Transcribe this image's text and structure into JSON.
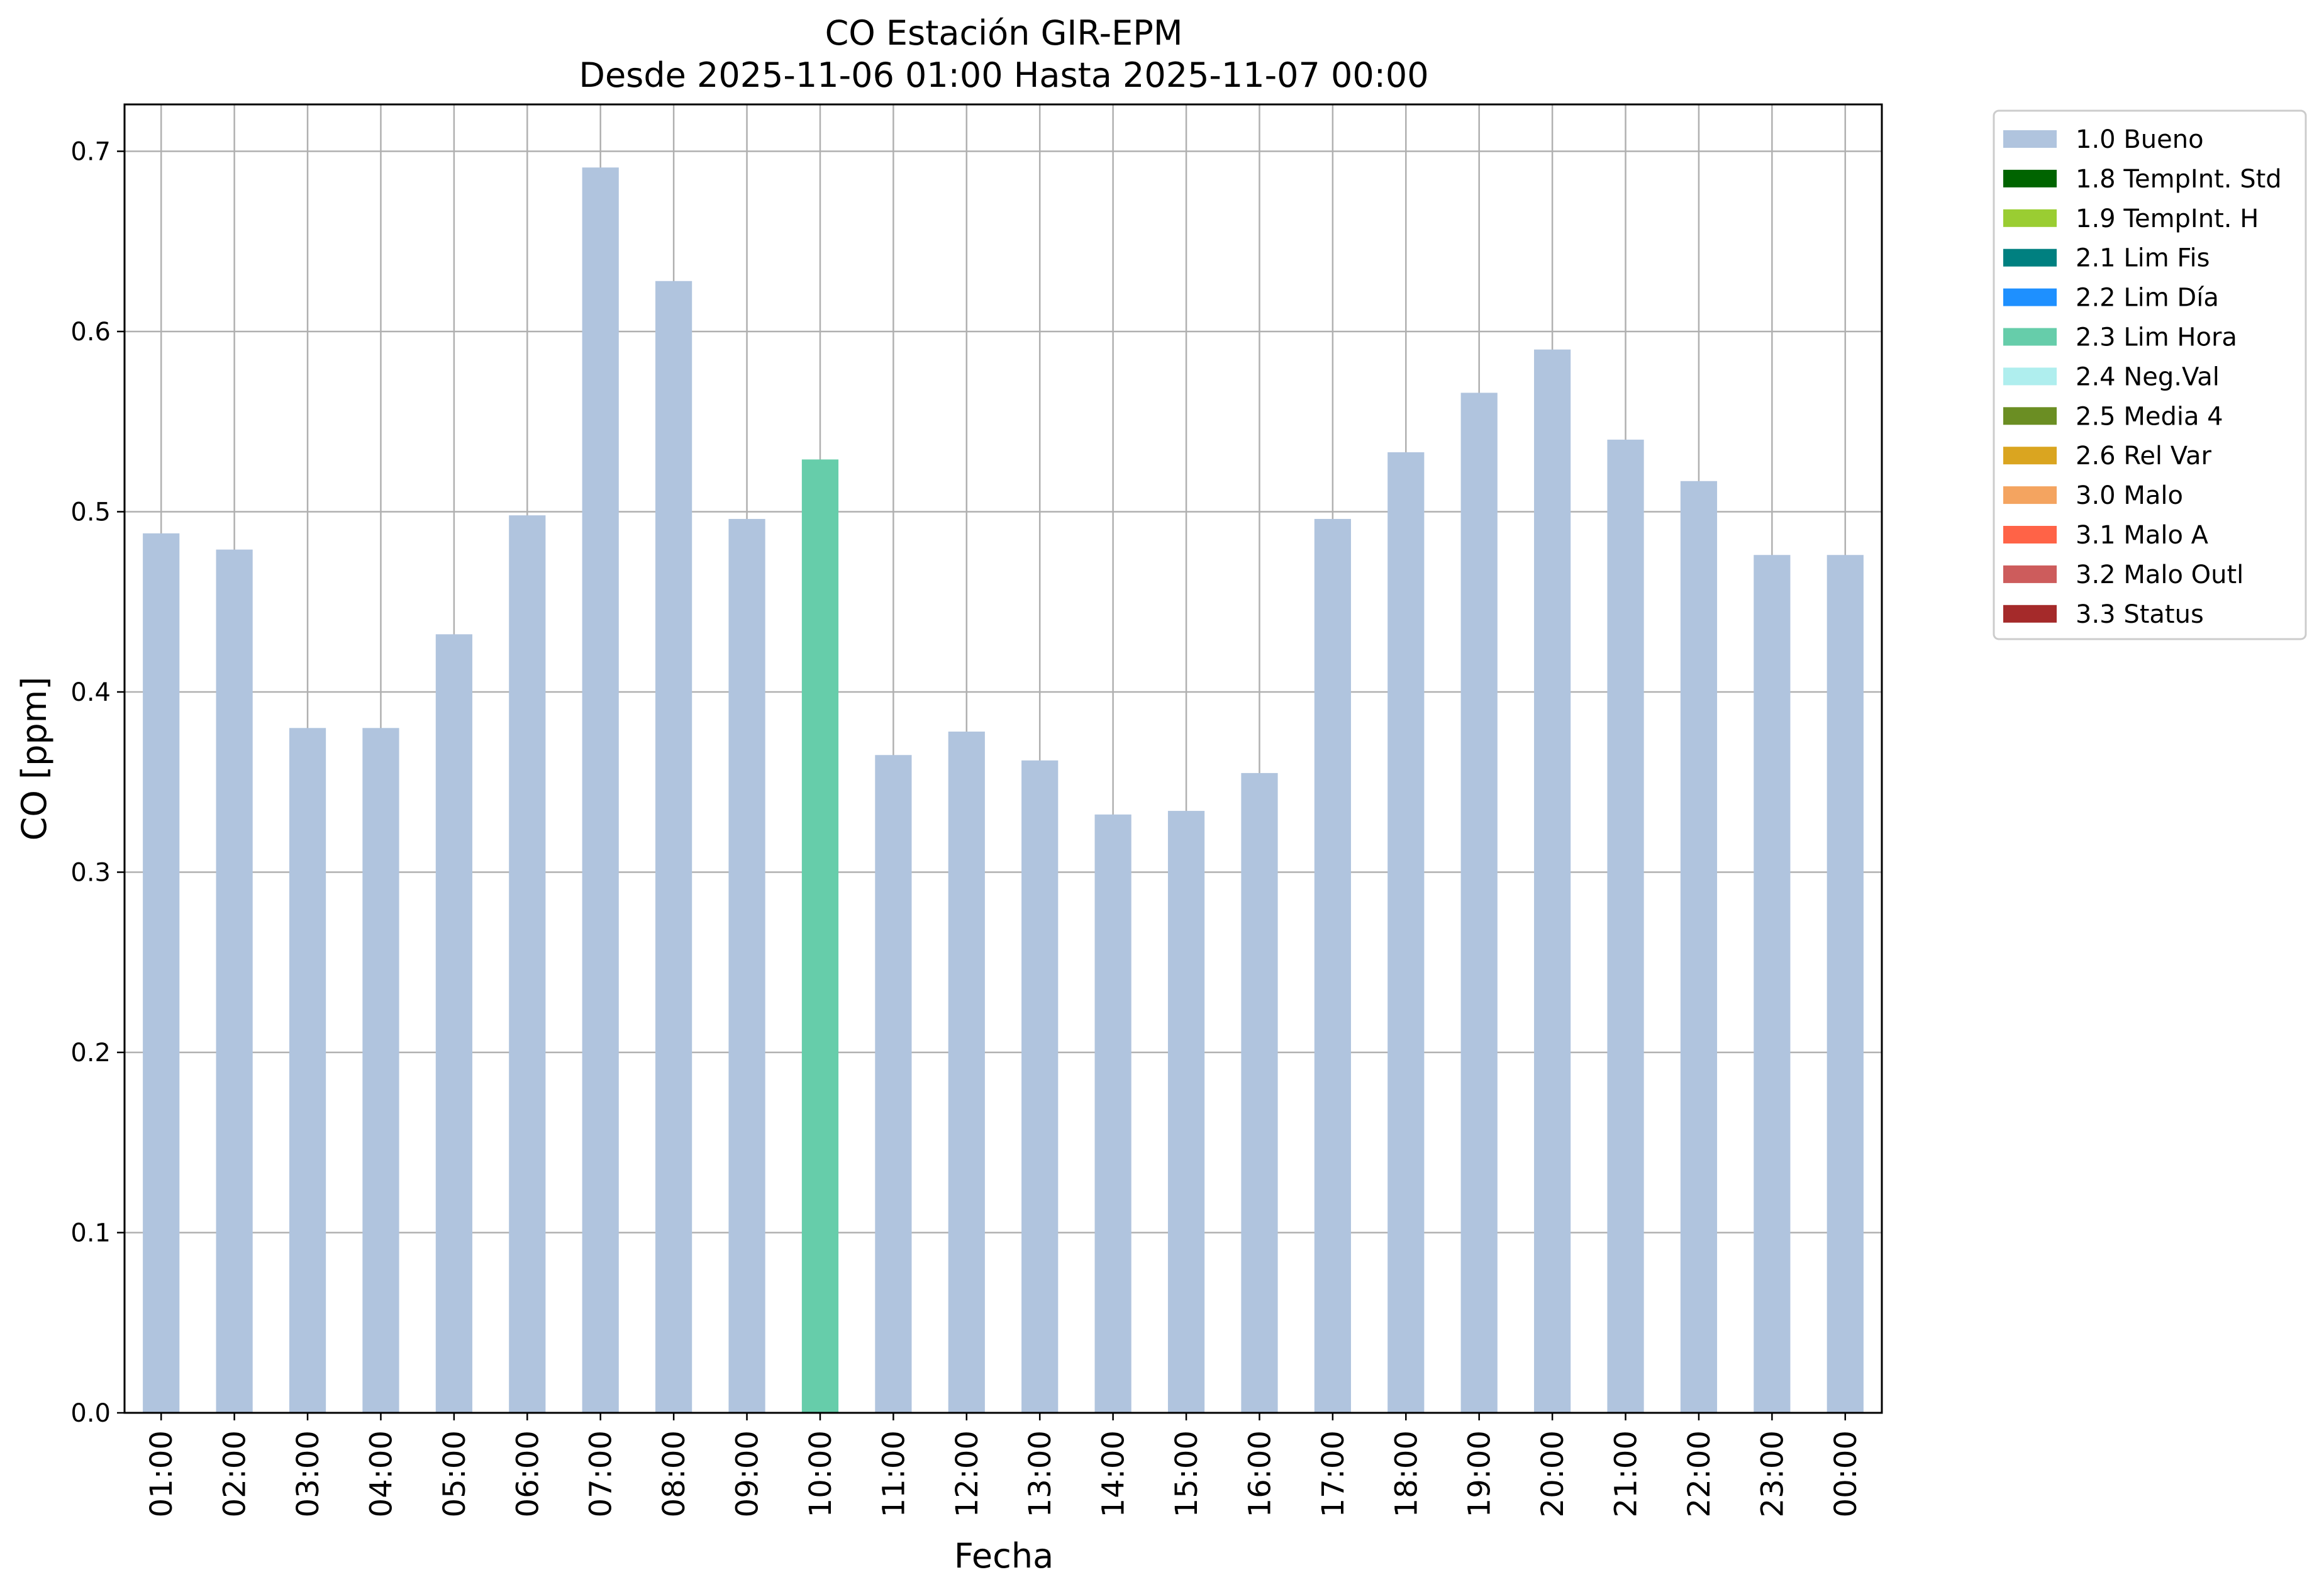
{
  "chart_data": {
    "type": "bar",
    "title": "CO Estación GIR-EPM",
    "subtitle": "Desde 2025-11-06 01:00 Hasta 2025-11-07 00:00",
    "xlabel": "Fecha",
    "ylabel": "CO [ppm]",
    "ylim": [
      0,
      0.726
    ],
    "yticks": [
      "0.0",
      "0.1",
      "0.2",
      "0.3",
      "0.4",
      "0.5",
      "0.6",
      "0.7"
    ],
    "grid": true,
    "legend_position": "outside-right-top",
    "categories": [
      "01:00",
      "02:00",
      "03:00",
      "04:00",
      "05:00",
      "06:00",
      "07:00",
      "08:00",
      "09:00",
      "10:00",
      "11:00",
      "12:00",
      "13:00",
      "14:00",
      "15:00",
      "16:00",
      "17:00",
      "18:00",
      "19:00",
      "20:00",
      "21:00",
      "22:00",
      "23:00",
      "00:00"
    ],
    "values": [
      0.488,
      0.479,
      0.38,
      0.38,
      0.432,
      0.498,
      0.691,
      0.628,
      0.496,
      0.529,
      0.365,
      0.378,
      0.362,
      0.332,
      0.334,
      0.355,
      0.496,
      0.533,
      0.566,
      0.59,
      0.54,
      0.517,
      0.476,
      0.476
    ],
    "flags": [
      "1.0 Bueno",
      "1.0 Bueno",
      "1.0 Bueno",
      "1.0 Bueno",
      "1.0 Bueno",
      "1.0 Bueno",
      "1.0 Bueno",
      "1.0 Bueno",
      "1.0 Bueno",
      "2.3 Lim Hora",
      "1.0 Bueno",
      "1.0 Bueno",
      "1.0 Bueno",
      "1.0 Bueno",
      "1.0 Bueno",
      "1.0 Bueno",
      "1.0 Bueno",
      "1.0 Bueno",
      "1.0 Bueno",
      "1.0 Bueno",
      "1.0 Bueno",
      "1.0 Bueno",
      "1.0 Bueno",
      "1.0 Bueno"
    ],
    "legend": [
      {
        "label": "1.0 Bueno",
        "color": "#B0C4DE"
      },
      {
        "label": "1.8 TempInt. Std",
        "color": "#006400"
      },
      {
        "label": "1.9 TempInt. H",
        "color": "#9ACD32"
      },
      {
        "label": "2.1 Lim Fis",
        "color": "#008080"
      },
      {
        "label": "2.2 Lim Día",
        "color": "#1E90FF"
      },
      {
        "label": "2.3 Lim Hora",
        "color": "#66CDAA"
      },
      {
        "label": "2.4 Neg.Val",
        "color": "#AFEEEE"
      },
      {
        "label": "2.5 Media 4",
        "color": "#6B8E23"
      },
      {
        "label": "2.6 Rel Var",
        "color": "#DAA520"
      },
      {
        "label": "3.0 Malo",
        "color": "#F4A460"
      },
      {
        "label": "3.1 Malo A",
        "color": "#FF6347"
      },
      {
        "label": "3.2 Malo Outl",
        "color": "#CD5C5C"
      },
      {
        "label": "3.3 Status",
        "color": "#A52A2A"
      }
    ]
  }
}
